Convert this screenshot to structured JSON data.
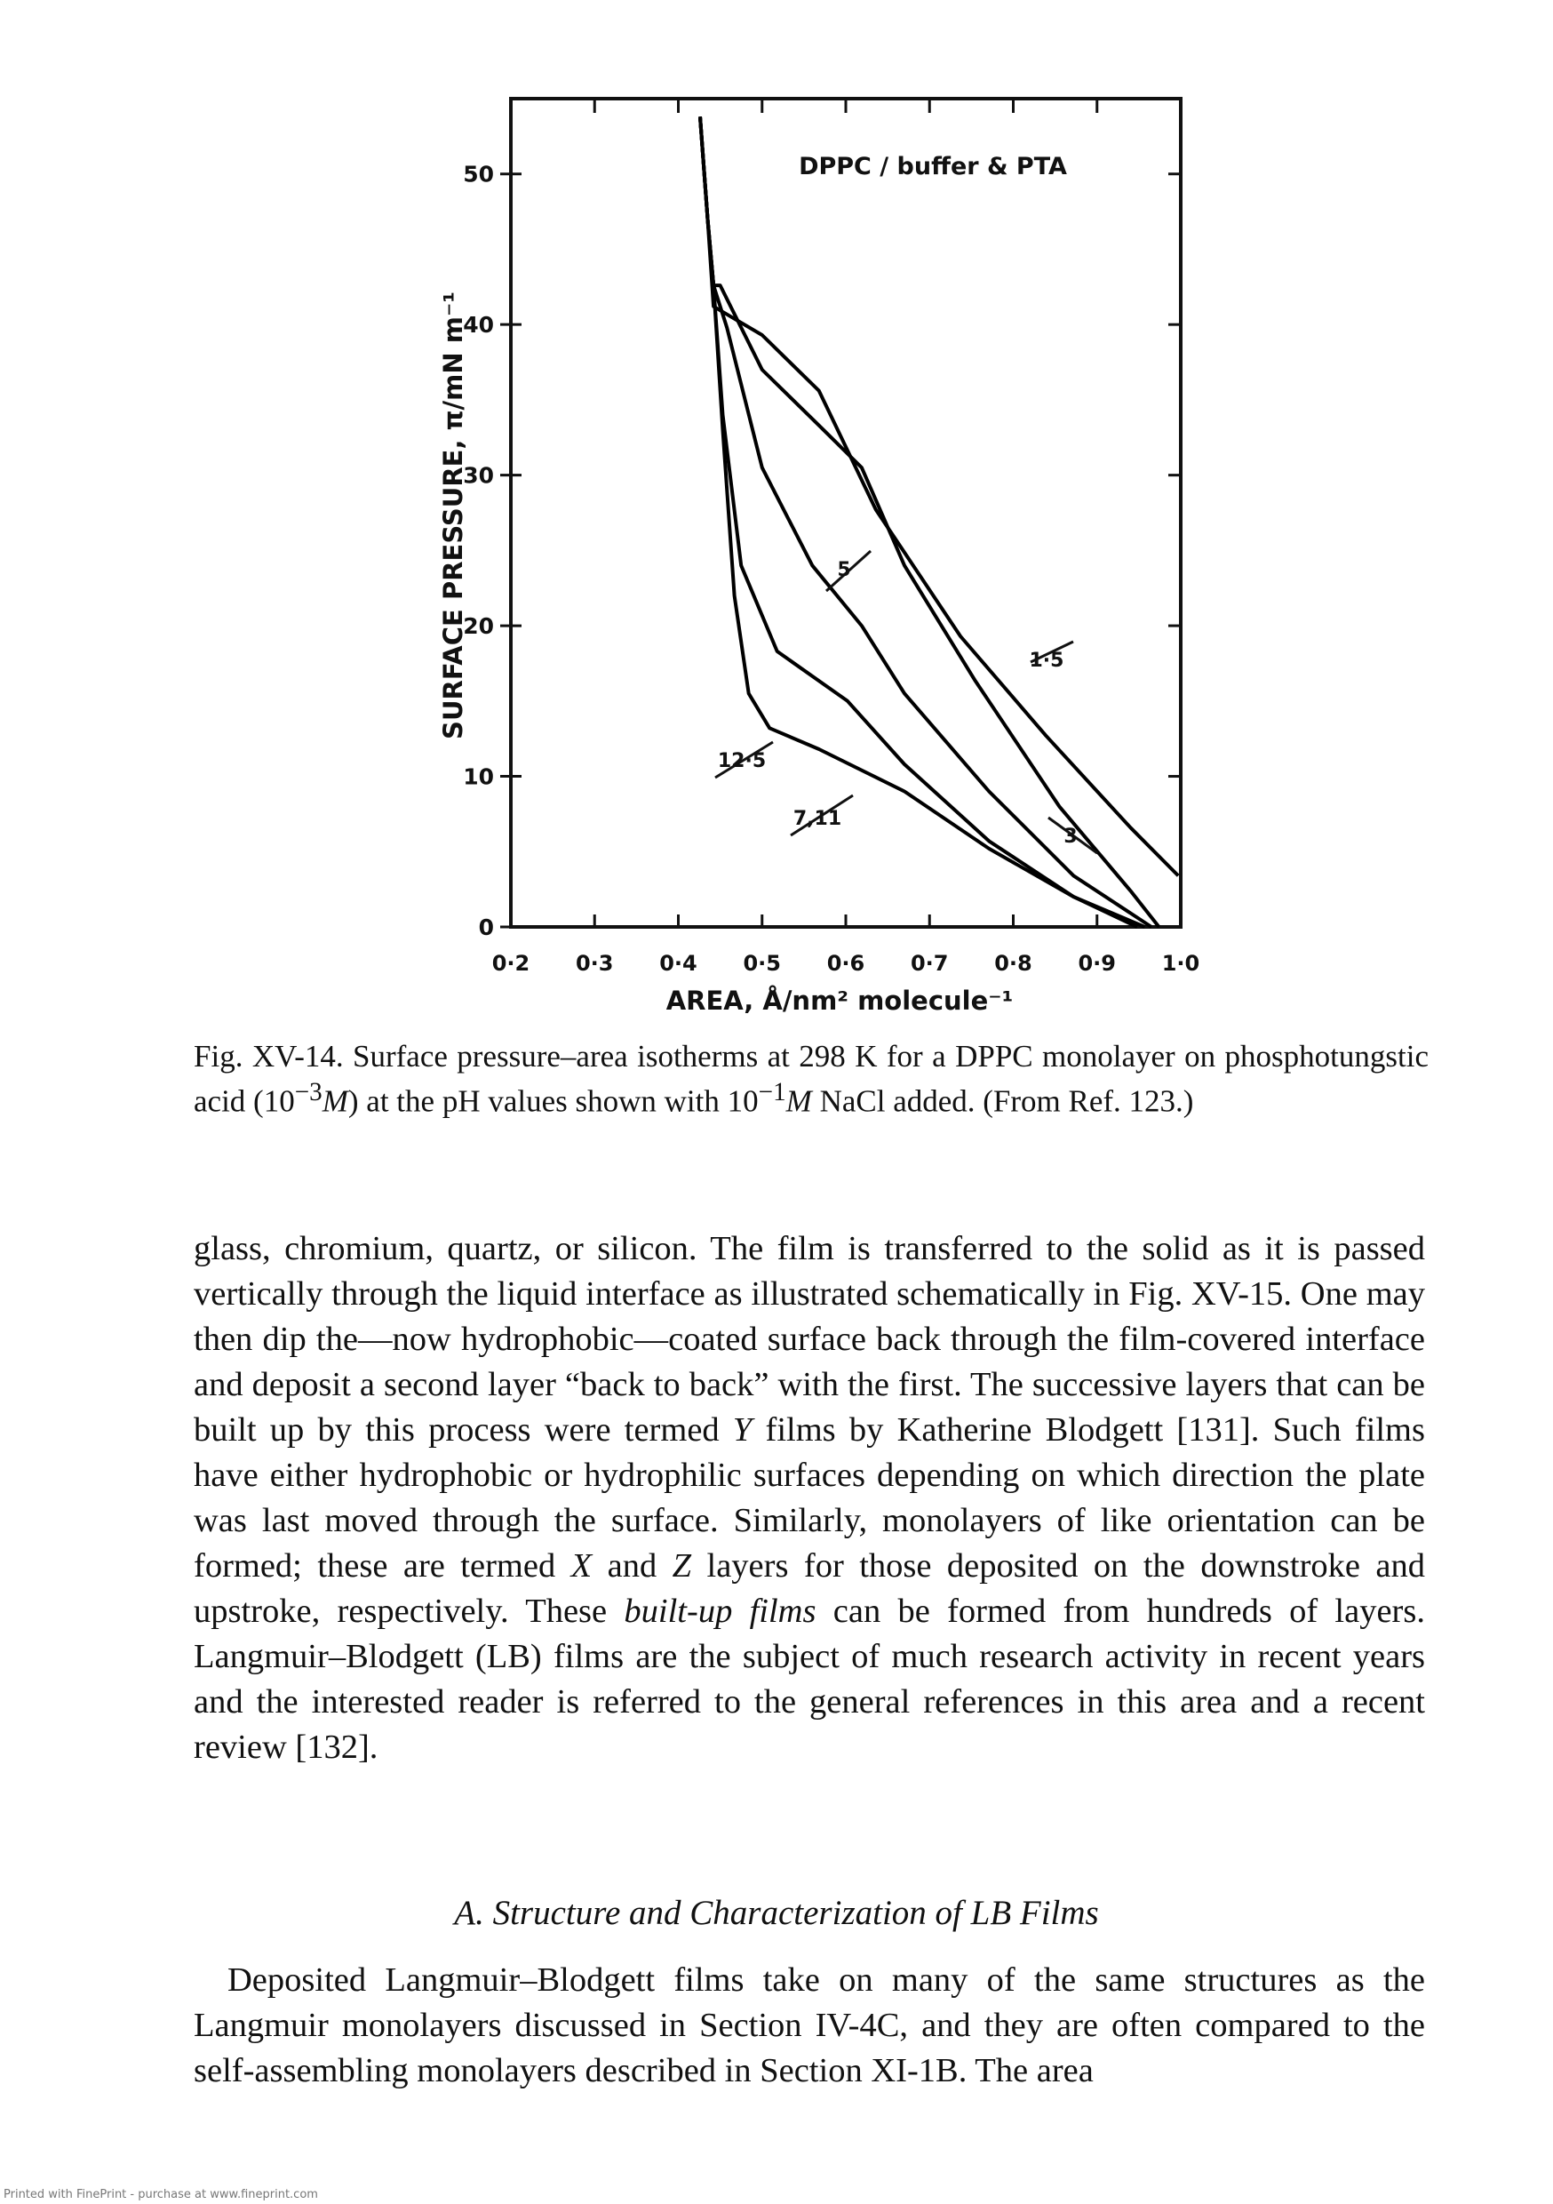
{
  "chart_data": {
    "type": "line",
    "title": "DPPC / buffer & PTA",
    "xlabel": "AREA, Å/nm² molecule⁻¹",
    "ylabel": "SURFACE PRESSURE, π/mN m⁻¹",
    "xlim": [
      0.2,
      1.0
    ],
    "ylim": [
      0,
      55
    ],
    "xticks": [
      {
        "value": 0.2,
        "label": "0·2"
      },
      {
        "value": 0.3,
        "label": "0·3"
      },
      {
        "value": 0.4,
        "label": "0·4"
      },
      {
        "value": 0.5,
        "label": "0·5"
      },
      {
        "value": 0.6,
        "label": "0·6"
      },
      {
        "value": 0.7,
        "label": "0·7"
      },
      {
        "value": 0.8,
        "label": "0·8"
      },
      {
        "value": 0.9,
        "label": "0·9"
      },
      {
        "value": 1.0,
        "label": "1·0"
      }
    ],
    "yticks": [
      0,
      10,
      20,
      30,
      40,
      50
    ],
    "grid": false,
    "series": [
      {
        "name": "12·5",
        "color": "#000000",
        "x": [
          0.426,
          0.435,
          0.442,
          0.453,
          0.467,
          0.484,
          0.509,
          0.568,
          0.67,
          0.771,
          0.872,
          0.948
        ],
        "values": [
          53.8,
          47,
          42.6,
          33,
          22,
          15.5,
          13.2,
          11.8,
          9,
          5.2,
          2,
          0
        ]
      },
      {
        "name": "7,11",
        "color": "#000000",
        "x": [
          0.426,
          0.435,
          0.442,
          0.453,
          0.475,
          0.518,
          0.602,
          0.67,
          0.771,
          0.872,
          0.957
        ],
        "values": [
          53.8,
          47,
          42.6,
          34,
          24,
          18.3,
          15,
          10.8,
          5.7,
          2,
          0
        ]
      },
      {
        "name": "5",
        "color": "#000000",
        "x": [
          0.426,
          0.435,
          0.442,
          0.458,
          0.5,
          0.56,
          0.619,
          0.67,
          0.771,
          0.872,
          0.965
        ],
        "values": [
          53.8,
          47,
          42.6,
          39.8,
          30.5,
          24,
          20,
          15.5,
          9,
          3.4,
          0
        ]
      },
      {
        "name": "3",
        "color": "#000000",
        "x": [
          0.426,
          0.435,
          0.442,
          0.45,
          0.5,
          0.568,
          0.619,
          0.67,
          0.754,
          0.855,
          0.94,
          0.974
        ],
        "values": [
          53.8,
          47,
          42.6,
          42.6,
          37,
          33.3,
          30.5,
          24,
          16.4,
          8,
          2.4,
          0
        ]
      },
      {
        "name": "1·5",
        "color": "#000000",
        "x": [
          0.426,
          0.435,
          0.442,
          0.5,
          0.568,
          0.636,
          0.737,
          0.839,
          0.94,
          0.997
        ],
        "values": [
          53.8,
          47,
          41.2,
          39.3,
          35.6,
          27.7,
          19.3,
          12.7,
          6.6,
          3.4
        ]
      }
    ]
  },
  "caption": [
    "Fig. XV-14. Surface pressure–area isotherms at 298 K for a DPPC monolayer on phosphotungstic acid (10",
    "−3",
    "M",
    ") at the pH values shown with 10",
    "−1",
    "M",
    " NaCl added. (From Ref. 123.)"
  ],
  "body": {
    "paragraphs": [
      [
        "glass, chromium, quartz, or silicon. The film is transferred to the solid as it is passed vertically through the liquid interface as illustrated schematically in Fig. XV-15. One may then dip the—now hydrophobic—coated surface back through the film-covered interface and deposit a second layer “back to back” with the first. The successive layers that can be built up by this process were termed ",
        {
          "text": "Y",
          "italic": true
        },
        " films by Katherine Blodgett [131]. Such films have either hydrophobic or hydrophilic surfaces depending on which direction the plate was last moved through the surface. Similarly, monolayers of like orientation can be formed; these are termed ",
        {
          "text": "X",
          "italic": true
        },
        " and ",
        {
          "text": "Z",
          "italic": true
        },
        " layers for those deposited on the downstroke and upstroke, respectively. These ",
        {
          "text": "built-up films",
          "italic": true
        },
        " can be formed from hundreds of layers. Langmuir–Blodgett (LB) films are the subject of much research activity in recent years and the interested reader is referred to the general references in this area and a recent review [132]."
      ]
    ],
    "heading": "A. Structure and Characterization of LB Films",
    "last_paragraph": "Deposited Langmuir–Blodgett films take on many of the same structures as the Langmuir monolayers discussed in Section IV-4C, and they are often compared to the self-assembling monolayers described in Section XI-1B. The area"
  },
  "footer": "Printed with FinePrint - purchase at www.fineprint.com"
}
